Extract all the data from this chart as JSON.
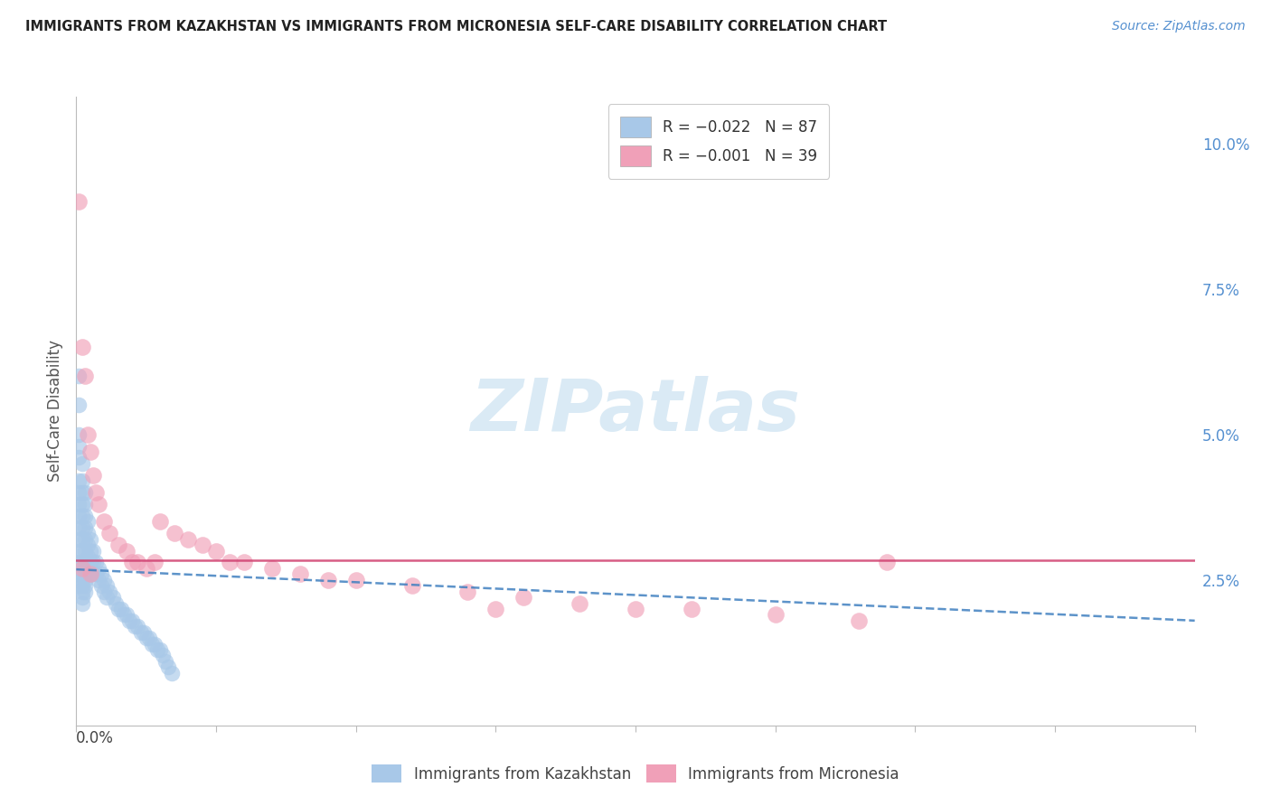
{
  "title": "IMMIGRANTS FROM KAZAKHSTAN VS IMMIGRANTS FROM MICRONESIA SELF-CARE DISABILITY CORRELATION CHART",
  "source": "Source: ZipAtlas.com",
  "ylabel": "Self-Care Disability",
  "ytick_labels": [
    "",
    "2.5%",
    "5.0%",
    "7.5%",
    "10.0%"
  ],
  "ytick_vals": [
    0.0,
    0.025,
    0.05,
    0.075,
    0.1
  ],
  "xlim": [
    0.0,
    0.4
  ],
  "ylim": [
    0.0,
    0.108
  ],
  "background_color": "#ffffff",
  "grid_color": "#cccccc",
  "kazakhstan_dot_color": "#a8c8e8",
  "micronesia_dot_color": "#f0a0b8",
  "kazakhstan_line_color": "#4080c0",
  "micronesia_line_color": "#d04070",
  "watermark_color": "#daeaf5",
  "kazakhstan_x": [
    0.001,
    0.001,
    0.001,
    0.001,
    0.001,
    0.001,
    0.001,
    0.001,
    0.001,
    0.001,
    0.001,
    0.001,
    0.001,
    0.001,
    0.001,
    0.002,
    0.002,
    0.002,
    0.002,
    0.002,
    0.002,
    0.002,
    0.002,
    0.002,
    0.002,
    0.002,
    0.002,
    0.002,
    0.002,
    0.002,
    0.003,
    0.003,
    0.003,
    0.003,
    0.003,
    0.003,
    0.003,
    0.003,
    0.003,
    0.003,
    0.003,
    0.003,
    0.004,
    0.004,
    0.004,
    0.004,
    0.004,
    0.005,
    0.005,
    0.005,
    0.005,
    0.006,
    0.006,
    0.006,
    0.007,
    0.007,
    0.008,
    0.008,
    0.009,
    0.009,
    0.01,
    0.01,
    0.011,
    0.011,
    0.012,
    0.013,
    0.014,
    0.015,
    0.016,
    0.017,
    0.018,
    0.019,
    0.02,
    0.021,
    0.022,
    0.023,
    0.024,
    0.025,
    0.026,
    0.027,
    0.028,
    0.029,
    0.03,
    0.031,
    0.032,
    0.033,
    0.034
  ],
  "kazakhstan_y": [
    0.06,
    0.055,
    0.05,
    0.048,
    0.046,
    0.042,
    0.04,
    0.038,
    0.036,
    0.034,
    0.032,
    0.03,
    0.028,
    0.026,
    0.024,
    0.045,
    0.042,
    0.04,
    0.038,
    0.036,
    0.034,
    0.032,
    0.03,
    0.028,
    0.026,
    0.025,
    0.024,
    0.023,
    0.022,
    0.021,
    0.04,
    0.038,
    0.036,
    0.034,
    0.032,
    0.03,
    0.028,
    0.027,
    0.026,
    0.025,
    0.024,
    0.023,
    0.035,
    0.033,
    0.031,
    0.029,
    0.027,
    0.032,
    0.03,
    0.028,
    0.026,
    0.03,
    0.028,
    0.026,
    0.028,
    0.026,
    0.027,
    0.025,
    0.026,
    0.024,
    0.025,
    0.023,
    0.024,
    0.022,
    0.023,
    0.022,
    0.021,
    0.02,
    0.02,
    0.019,
    0.019,
    0.018,
    0.018,
    0.017,
    0.017,
    0.016,
    0.016,
    0.015,
    0.015,
    0.014,
    0.014,
    0.013,
    0.013,
    0.012,
    0.011,
    0.01,
    0.009
  ],
  "micronesia_x": [
    0.001,
    0.002,
    0.003,
    0.004,
    0.005,
    0.006,
    0.007,
    0.008,
    0.01,
    0.012,
    0.015,
    0.018,
    0.02,
    0.022,
    0.025,
    0.028,
    0.03,
    0.035,
    0.04,
    0.045,
    0.05,
    0.055,
    0.06,
    0.07,
    0.08,
    0.09,
    0.1,
    0.12,
    0.14,
    0.16,
    0.18,
    0.2,
    0.22,
    0.25,
    0.28,
    0.29,
    0.002,
    0.005,
    0.15
  ],
  "micronesia_y": [
    0.09,
    0.065,
    0.06,
    0.05,
    0.047,
    0.043,
    0.04,
    0.038,
    0.035,
    0.033,
    0.031,
    0.03,
    0.028,
    0.028,
    0.027,
    0.028,
    0.035,
    0.033,
    0.032,
    0.031,
    0.03,
    0.028,
    0.028,
    0.027,
    0.026,
    0.025,
    0.025,
    0.024,
    0.023,
    0.022,
    0.021,
    0.02,
    0.02,
    0.019,
    0.018,
    0.028,
    0.027,
    0.026,
    0.02
  ],
  "kaz_trend_x": [
    0.0,
    0.4
  ],
  "kaz_trend_y": [
    0.0268,
    0.018
  ],
  "mic_trend_x": [
    0.0,
    0.4
  ],
  "mic_trend_y": [
    0.0283,
    0.0283
  ]
}
